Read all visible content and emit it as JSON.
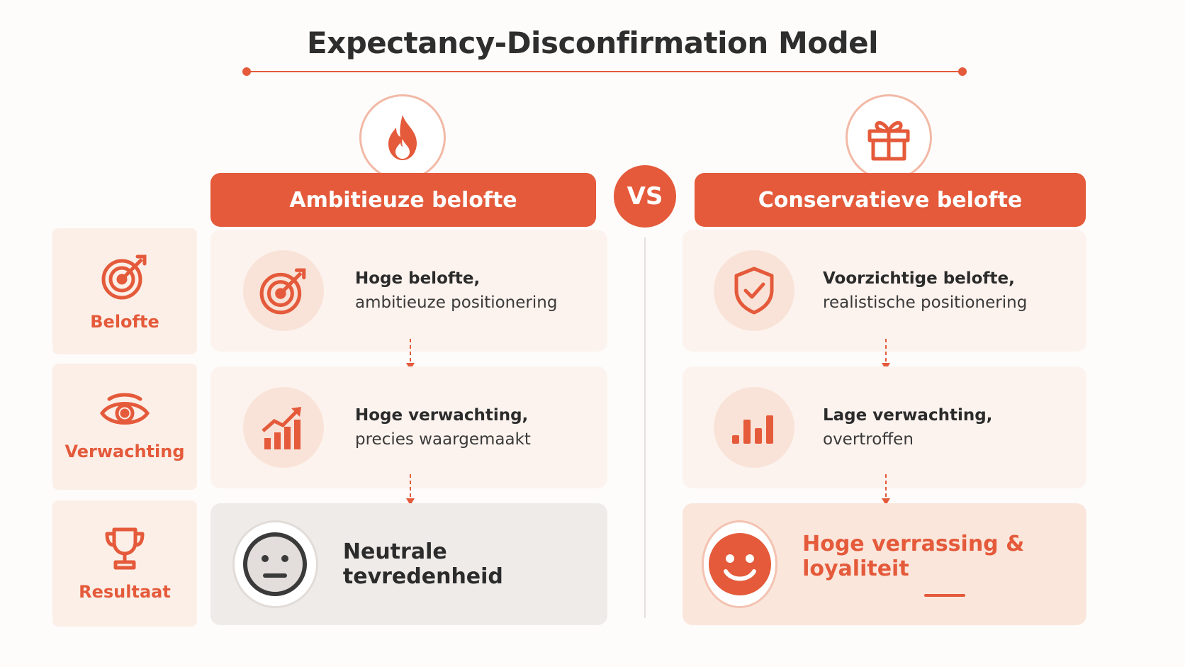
{
  "title": "Expectancy-Disconfirmation Model",
  "vs_label": "VS",
  "columns": {
    "left": {
      "header": "Ambitieuze belofte",
      "top_icon": "flame-icon",
      "promise": {
        "icon": "target-icon",
        "bold": "Hoge belofte,",
        "normal": "ambitieuze positionering"
      },
      "expectation": {
        "icon": "rising-chart-icon",
        "bold": "Hoge verwachting,",
        "normal": "precies waargemaakt"
      },
      "result": {
        "icon": "neutral-face-icon",
        "text": "Neutrale tevredenheid"
      }
    },
    "right": {
      "header": "Conservatieve belofte",
      "top_icon": "gift-icon",
      "promise": {
        "icon": "shield-check-icon",
        "bold": "Voorzichtige belofte,",
        "normal": "realistische positionering"
      },
      "expectation": {
        "icon": "bar-chart-icon",
        "bold": "Lage verwachting,",
        "normal": "overtroffen"
      },
      "result": {
        "icon": "smiley-face-icon",
        "text": "Hoge verrassing & loyaliteit"
      }
    }
  },
  "rows": [
    {
      "label": "Belofte",
      "icon": "target-icon"
    },
    {
      "label": "Verwachting",
      "icon": "eye-icon"
    },
    {
      "label": "Resultaat",
      "icon": "trophy-icon"
    }
  ],
  "colors": {
    "accent": "#e45a3a",
    "card": "#fcf3ee",
    "neutral_card": "#efebe8"
  }
}
